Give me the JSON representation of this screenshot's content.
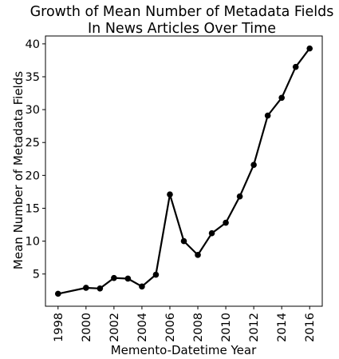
{
  "chart_data": {
    "type": "line",
    "title": [
      "Growth of Mean Number of Metadata Fields",
      "In News Articles Over Time"
    ],
    "xlabel": "Memento-Datetime Year",
    "ylabel": "Mean Number of Metadata Fields",
    "xlim": [
      1997.1,
      2016.9
    ],
    "ylim": [
      0.1,
      41.2
    ],
    "xticks": [
      1998,
      2000,
      2002,
      2004,
      2006,
      2008,
      2010,
      2012,
      2014,
      2016
    ],
    "xtick_labels": [
      "1998",
      "2000",
      "2002",
      "2004",
      "2006",
      "2008",
      "2010",
      "2012",
      "2014",
      "2016"
    ],
    "yticks": [
      5,
      10,
      15,
      20,
      25,
      30,
      35,
      40
    ],
    "ytick_labels": [
      "5",
      "10",
      "15",
      "20",
      "25",
      "30",
      "35",
      "40"
    ],
    "grid": false,
    "series": [
      {
        "color": "#000000",
        "marker": "circle",
        "x": [
          1998,
          2000,
          2001,
          2002,
          2003,
          2004,
          2005,
          2006,
          2007,
          2008,
          2009,
          2010,
          2011,
          2012,
          2013,
          2014,
          2015,
          2016
        ],
        "y": [
          2.0,
          2.9,
          2.8,
          4.4,
          4.3,
          3.1,
          4.9,
          17.1,
          10.0,
          7.9,
          11.2,
          12.8,
          16.8,
          21.6,
          29.1,
          31.8,
          36.5,
          39.3
        ]
      }
    ]
  }
}
